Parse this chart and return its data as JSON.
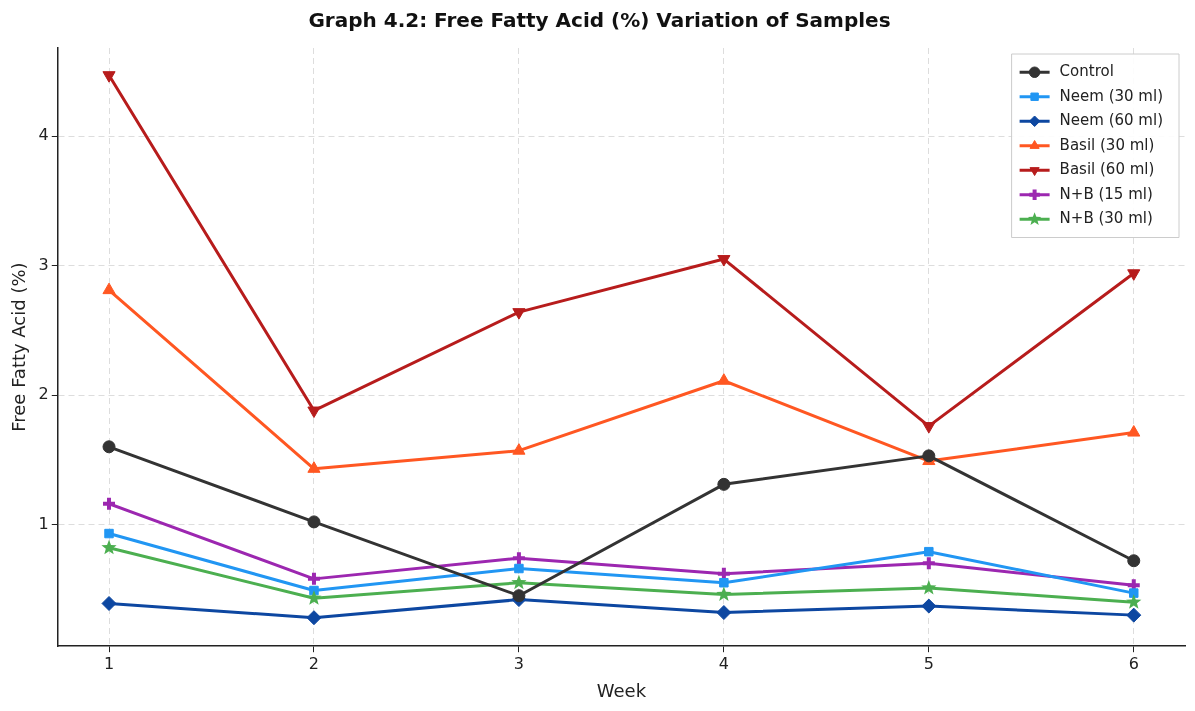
{
  "chart_data": {
    "type": "line",
    "title": "Graph 4.2: Free Fatty Acid (%) Variation of Samples",
    "xlabel": "Week",
    "ylabel": "Free Fatty Acid (%)",
    "x": [
      1,
      2,
      3,
      4,
      5,
      6
    ],
    "xlim": [
      0.75,
      6.25
    ],
    "xticks": [
      1,
      2,
      3,
      4,
      5,
      6
    ],
    "ylim": [
      0.06,
      4.68
    ],
    "yticks": [
      1,
      2,
      3,
      4
    ],
    "grid": true,
    "legend": "top right",
    "line_style": "solid",
    "series": [
      {
        "name": "Control",
        "color": "#333333",
        "marker": "circle",
        "values": [
          1.6,
          1.02,
          0.45,
          1.31,
          1.53,
          0.72
        ]
      },
      {
        "name": "Neem (30 ml)",
        "color": "#2196f3",
        "marker": "square",
        "values": [
          0.93,
          0.49,
          0.66,
          0.55,
          0.79,
          0.47
        ]
      },
      {
        "name": "Neem (60 ml)",
        "color": "#0d47a1",
        "marker": "diamond",
        "values": [
          0.39,
          0.28,
          0.42,
          0.32,
          0.37,
          0.3
        ]
      },
      {
        "name": "Basil (30 ml)",
        "color": "#ff5722",
        "marker": "triangle",
        "values": [
          2.81,
          1.43,
          1.57,
          2.11,
          1.49,
          1.71
        ]
      },
      {
        "name": "Basil (60 ml)",
        "color": "#b71c1c",
        "marker": "triangle-down",
        "values": [
          4.47,
          1.88,
          2.64,
          3.05,
          1.76,
          2.94
        ]
      },
      {
        "name": "N+B (15 ml)",
        "color": "#9c27b0",
        "marker": "cross",
        "values": [
          1.16,
          0.58,
          0.74,
          0.62,
          0.7,
          0.53
        ]
      },
      {
        "name": "N+B (30 ml)",
        "color": "#4caf50",
        "marker": "star",
        "values": [
          0.82,
          0.43,
          0.55,
          0.46,
          0.51,
          0.4
        ]
      }
    ]
  }
}
